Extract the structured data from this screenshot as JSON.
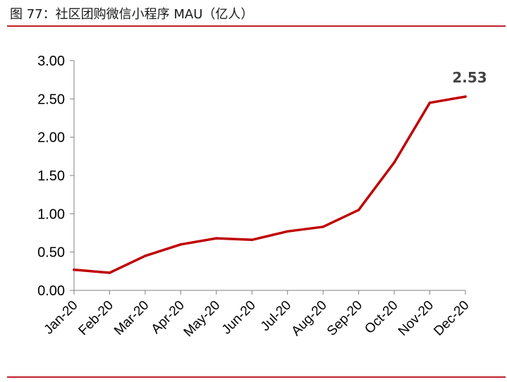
{
  "header": {
    "title": "图 77：社区团购微信小程序 MAU（亿人）"
  },
  "colors": {
    "accent": "#c0212a",
    "line": "#c00000",
    "axis": "#808080"
  },
  "chart_data": {
    "type": "line",
    "title": "",
    "xlabel": "",
    "ylabel": "",
    "categories": [
      "Jan-20",
      "Feb-20",
      "Mar-20",
      "Apr-20",
      "May-20",
      "Jun-20",
      "Jul-20",
      "Aug-20",
      "Sep-20",
      "Oct-20",
      "Nov-20",
      "Dec-20"
    ],
    "series": [
      {
        "values": [
          0.27,
          0.23,
          0.45,
          0.6,
          0.68,
          0.66,
          0.77,
          0.83,
          1.05,
          1.67,
          2.45,
          2.53
        ]
      }
    ],
    "ylim": [
      0,
      3
    ],
    "yticks": [
      0,
      0.5,
      1,
      1.5,
      2,
      2.5,
      3
    ],
    "ytick_labels": [
      "0.00",
      "0.50",
      "1.00",
      "1.50",
      "2.00",
      "2.50",
      "3.00"
    ],
    "data_labels": [
      {
        "index": 11,
        "text": "2.53"
      }
    ],
    "grid": false,
    "legend": "none"
  }
}
